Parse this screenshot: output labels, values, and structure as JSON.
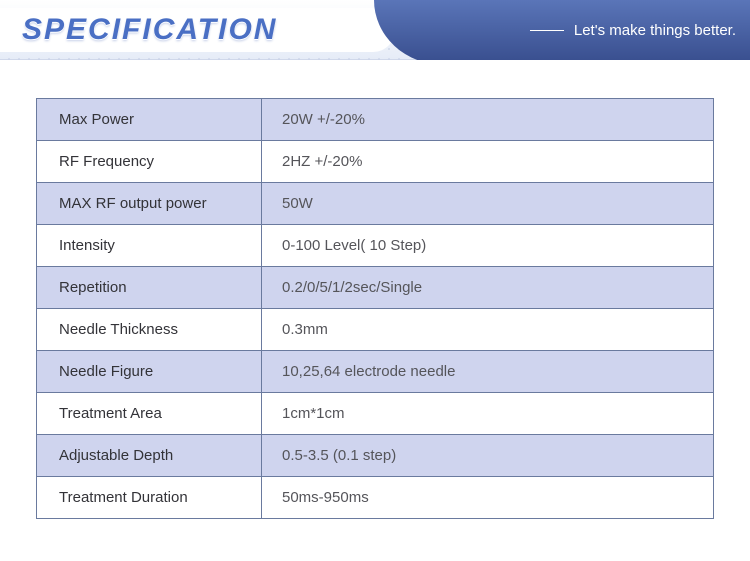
{
  "header": {
    "title": "SPECIFICATION",
    "tagline": "Let's make things better.",
    "title_color": "#4a6fc4",
    "right_bg_top": "#5a75b8",
    "right_bg_bottom": "#3a5090"
  },
  "table": {
    "border_color": "#6a7a9e",
    "tint_color": "#cfd4ee",
    "rows": [
      {
        "label": "Max Power",
        "value": "20W +/-20%"
      },
      {
        "label": "RF Frequency",
        "value": "2HZ +/-20%"
      },
      {
        "label": "MAX RF output power",
        "value": "50W"
      },
      {
        "label": "Intensity",
        "value": "0-100 Level( 10 Step)"
      },
      {
        "label": "Repetition",
        "value": "0.2/0/5/1/2sec/Single"
      },
      {
        "label": "Needle Thickness",
        "value": "0.3mm"
      },
      {
        "label": "Needle Figure",
        "value": "10,25,64 electrode needle"
      },
      {
        "label": "Treatment Area",
        "value": "1cm*1cm"
      },
      {
        "label": "Adjustable Depth",
        "value": "0.5-3.5 (0.1 step)"
      },
      {
        "label": "Treatment Duration",
        "value": "50ms-950ms"
      }
    ]
  }
}
